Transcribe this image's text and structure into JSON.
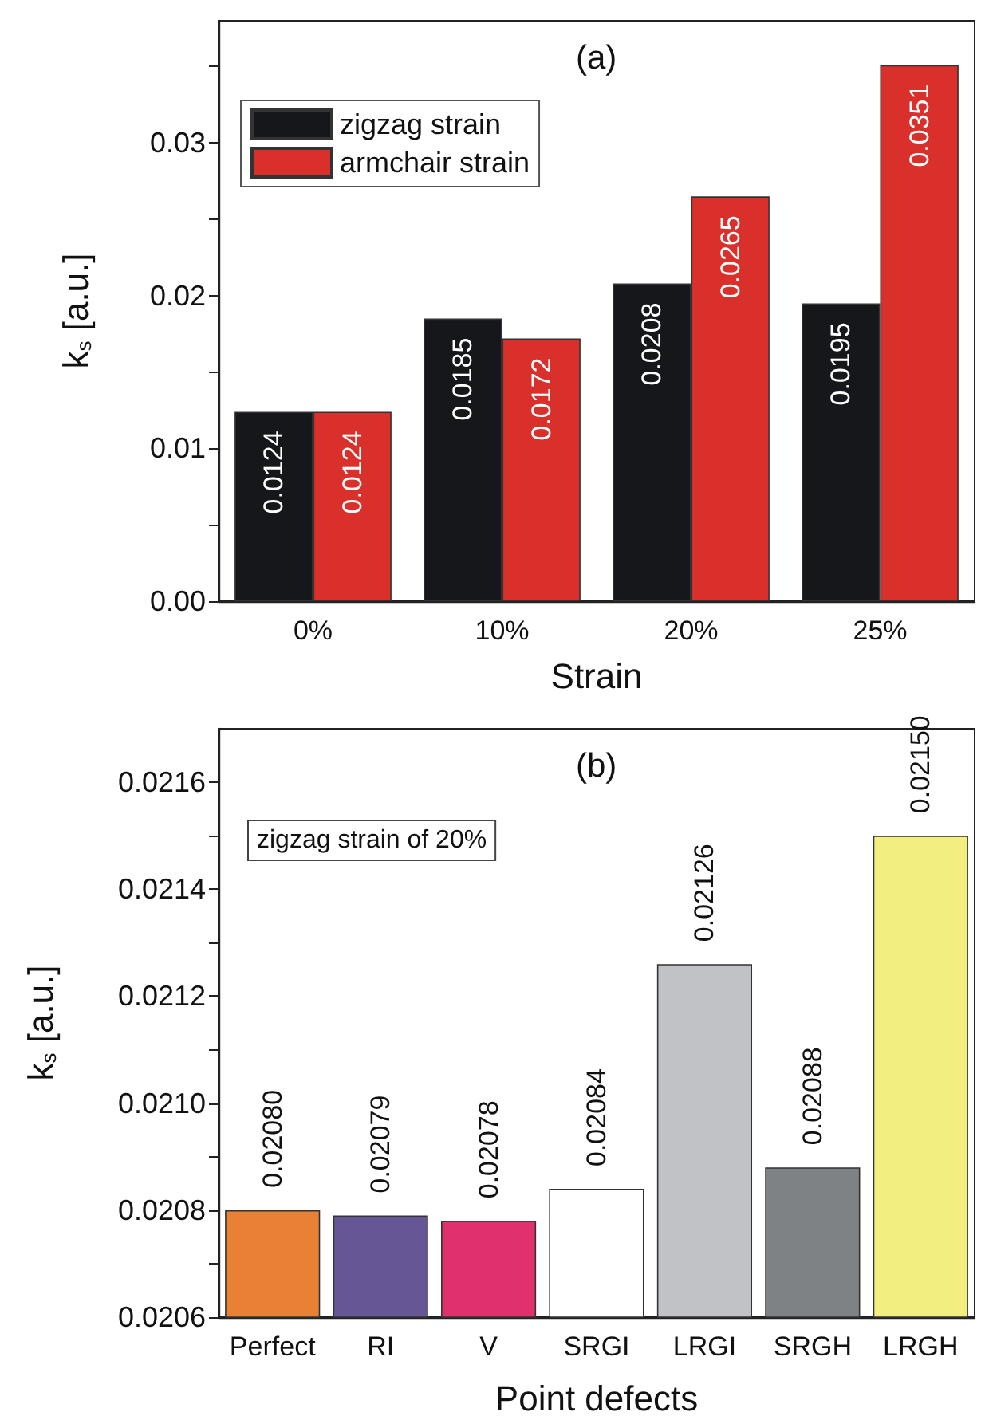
{
  "chart_data": [
    {
      "type": "bar",
      "title": "(a)",
      "xlabel": "Strain",
      "ylabel": "k$_{s}$ [a.u.]",
      "categories": [
        "0%",
        "10%",
        "20%",
        "25%"
      ],
      "series": [
        {
          "name": "zigzag strain",
          "color": "#16171a",
          "values": [
            0.0124,
            0.0185,
            0.0208,
            0.0195
          ]
        },
        {
          "name": "armchair strain",
          "color": "#d9302c",
          "values": [
            0.0124,
            0.0172,
            0.0265,
            0.0351
          ]
        }
      ],
      "ylim": [
        0,
        0.038
      ],
      "yticks": [
        {
          "value": 0,
          "label": "0.00"
        },
        {
          "value": 0.005,
          "label": null
        },
        {
          "value": 0.01,
          "label": "0.01"
        },
        {
          "value": 0.015,
          "label": null
        },
        {
          "value": 0.02,
          "label": "0.02"
        },
        {
          "value": 0.025,
          "label": null
        },
        {
          "value": 0.03,
          "label": "0.03"
        },
        {
          "value": 0.035,
          "label": null
        }
      ],
      "data_labels": true,
      "legend": "top left",
      "grid": false
    },
    {
      "type": "bar",
      "title": "(b)",
      "xlabel": "Point defects",
      "ylabel": "k$_{s}$ [a.u.]",
      "categories": [
        "Perfect",
        "RI",
        "V",
        "SRGI",
        "LRGI",
        "SRGH",
        "LRGH"
      ],
      "values": [
        0.0208,
        0.02079,
        0.02078,
        0.02084,
        0.02126,
        0.02088,
        0.0215
      ],
      "value_labels": [
        "0.02080",
        "0.02079",
        "0.02078",
        "0.02084",
        "0.02126",
        "0.02088",
        "0.02150"
      ],
      "colors": [
        "#e88035",
        "#665696",
        "#e0306e",
        "#ffffff",
        "#c1c2c6",
        "#7f8285",
        "#f2ee80"
      ],
      "ylim": [
        0.0206,
        0.0217
      ],
      "yticks": [
        0.0206,
        {
          "value": 0.0207,
          "label": null
        },
        0.0208,
        {
          "value": 0.0209,
          "label": null
        },
        {
          "value": 0.021,
          "label": "0.0210"
        },
        {
          "value": 0.0211,
          "label": null
        },
        0.0212,
        {
          "value": 0.0213,
          "label": null
        },
        0.0214,
        {
          "value": 0.0215,
          "label": null
        },
        0.0216
      ],
      "annotations": [
        "zigzag strain of 20%"
      ],
      "grid": false
    }
  ]
}
